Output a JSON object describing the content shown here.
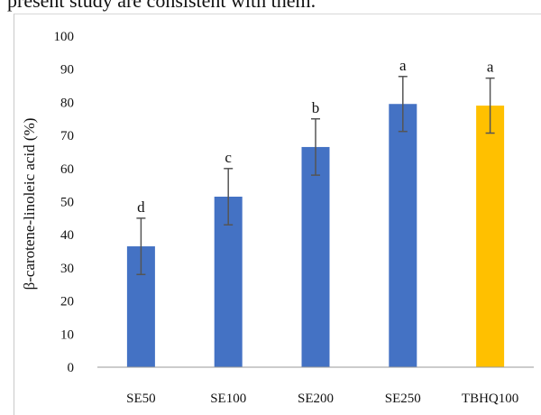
{
  "page": {
    "partial_text": "present study are consistent with them."
  },
  "chart_data": {
    "type": "bar",
    "title": "",
    "xlabel": "",
    "ylabel": "β-carotene-linoleic acid  (%)",
    "ylim": [
      0,
      100
    ],
    "yticks": [
      0,
      10,
      20,
      30,
      40,
      50,
      60,
      70,
      80,
      90,
      100
    ],
    "grid": false,
    "categories": [
      "SE50",
      "SE100",
      "SE200",
      "SE250",
      "TBHQ100"
    ],
    "values": [
      36.5,
      51.5,
      66.5,
      79.5,
      79
    ],
    "errors": [
      8.5,
      8.5,
      8.5,
      8.3,
      8.3
    ],
    "significance": [
      "d",
      "c",
      "b",
      "a",
      "a"
    ],
    "colors": [
      "#4472c4",
      "#4472c4",
      "#4472c4",
      "#4472c4",
      "#ffc000"
    ]
  }
}
